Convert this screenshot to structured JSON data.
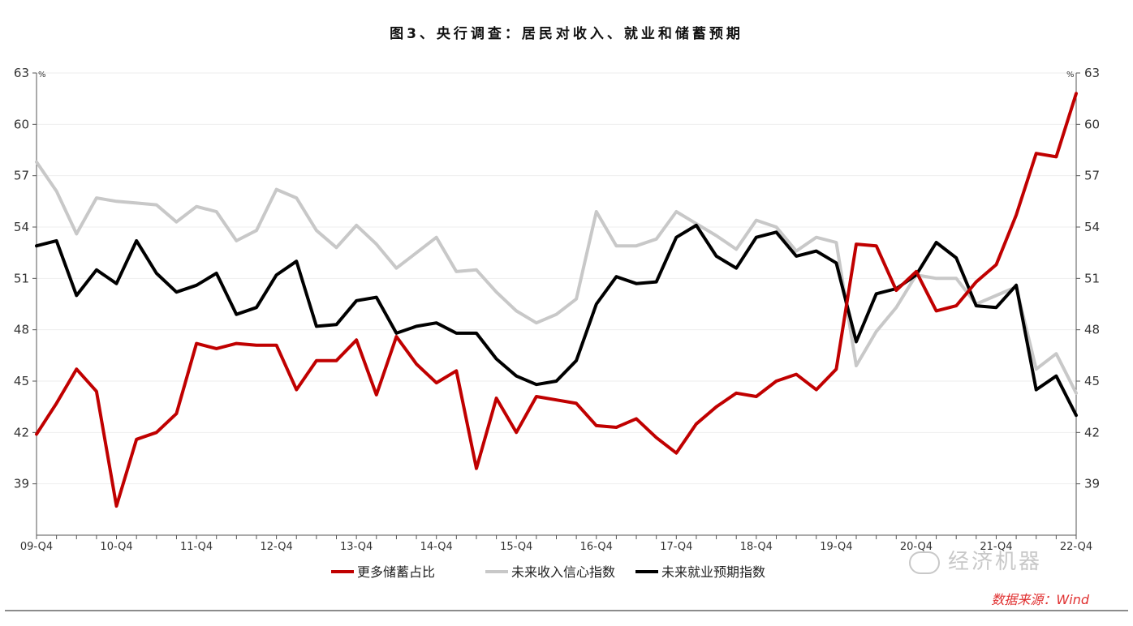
{
  "chart_data": {
    "type": "line",
    "title": "图3、央行调查：居民对收入、就业和储蓄预期",
    "y_unit_left": "%",
    "y_unit_right": "%",
    "ylim": [
      36,
      63
    ],
    "yticks": [
      39,
      42,
      45,
      48,
      51,
      54,
      57,
      60,
      63
    ],
    "x_labels": [
      "09-Q4",
      "10-Q4",
      "11-Q4",
      "12-Q4",
      "13-Q4",
      "14-Q4",
      "15-Q4",
      "16-Q4",
      "17-Q4",
      "18-Q4",
      "19-Q4",
      "20-Q4",
      "21-Q4",
      "22-Q4"
    ],
    "grid": true,
    "legend_position": "bottom",
    "series": [
      {
        "name": "更多储蓄占比",
        "color": "#c00000",
        "values": [
          41.9,
          43.7,
          45.7,
          44.4,
          37.7,
          41.6,
          42.0,
          43.1,
          47.2,
          46.9,
          47.2,
          47.1,
          47.1,
          44.5,
          46.2,
          46.2,
          47.4,
          44.2,
          47.6,
          46.0,
          44.9,
          45.6,
          39.9,
          44.0,
          42.0,
          44.1,
          43.9,
          43.7,
          42.4,
          42.3,
          42.8,
          41.7,
          40.8,
          42.5,
          43.5,
          44.3,
          44.1,
          45.0,
          45.4,
          44.5,
          45.7,
          53.0,
          52.9,
          50.3,
          51.4,
          49.1,
          49.4,
          50.8,
          51.8,
          54.7,
          58.3,
          58.1,
          61.8
        ]
      },
      {
        "name": "未来收入信心指数",
        "color": "#c8c8c8",
        "values": [
          57.8,
          56.1,
          53.6,
          55.7,
          55.5,
          55.4,
          55.3,
          54.3,
          55.2,
          54.9,
          53.2,
          53.8,
          56.2,
          55.7,
          53.8,
          52.8,
          54.1,
          53.0,
          51.6,
          52.5,
          53.4,
          51.4,
          51.5,
          50.2,
          49.1,
          48.4,
          48.9,
          49.8,
          54.9,
          52.9,
          52.9,
          53.3,
          54.9,
          54.2,
          53.5,
          52.7,
          54.4,
          54.0,
          52.6,
          53.4,
          53.1,
          45.9,
          47.9,
          49.3,
          51.2,
          51.0,
          51.0,
          49.5,
          50.0,
          50.5,
          45.7,
          46.6,
          44.3
        ]
      },
      {
        "name": "未来就业预期指数",
        "color": "#000000",
        "values": [
          52.9,
          53.2,
          50.0,
          51.5,
          50.7,
          53.2,
          51.3,
          50.2,
          50.6,
          51.3,
          48.9,
          49.3,
          51.2,
          52.0,
          48.2,
          48.3,
          49.7,
          49.9,
          47.8,
          48.2,
          48.4,
          47.8,
          47.8,
          46.3,
          45.3,
          44.8,
          45.0,
          46.2,
          49.5,
          51.1,
          50.7,
          50.8,
          53.4,
          54.1,
          52.3,
          51.6,
          53.4,
          53.7,
          52.3,
          52.6,
          51.9,
          47.3,
          50.1,
          50.4,
          51.2,
          53.1,
          52.2,
          49.4,
          49.3,
          50.6,
          44.5,
          45.3,
          43.0
        ]
      }
    ]
  },
  "watermark": "经济机器",
  "source": "数据来源：Wind"
}
